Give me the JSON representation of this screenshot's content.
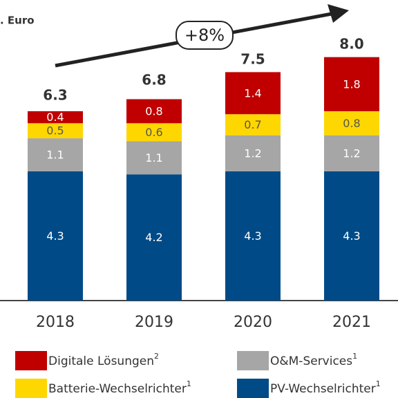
{
  "chart_data": {
    "type": "stacked_bar",
    "unit_label": ". Euro",
    "annotation": "+8%",
    "categories": [
      "2018",
      "2019",
      "2020",
      "2021"
    ],
    "series": [
      {
        "name": "PV-Wechselrichter",
        "footnote": "1",
        "color": "#004b87",
        "label_color": "#ffffff",
        "values": [
          4.3,
          4.2,
          4.3,
          4.3
        ]
      },
      {
        "name": "O&M-Services",
        "footnote": "1",
        "color": "#a6a6a6",
        "label_color": "#ffffff",
        "values": [
          1.1,
          1.1,
          1.2,
          1.2
        ]
      },
      {
        "name": "Batterie-Wechselrichter",
        "footnote": "1",
        "color": "#ffd700",
        "label_color": "#555555",
        "values": [
          0.5,
          0.6,
          0.7,
          0.8
        ]
      },
      {
        "name": "Digitale Lösungen",
        "footnote": "2",
        "color": "#c00000",
        "label_color": "#ffffff",
        "values": [
          0.4,
          0.8,
          1.4,
          1.8
        ]
      }
    ],
    "totals": [
      6.3,
      6.8,
      7.5,
      8
    ],
    "total_labels": [
      "6.3",
      "6.8",
      "7.5",
      "8.0"
    ]
  }
}
